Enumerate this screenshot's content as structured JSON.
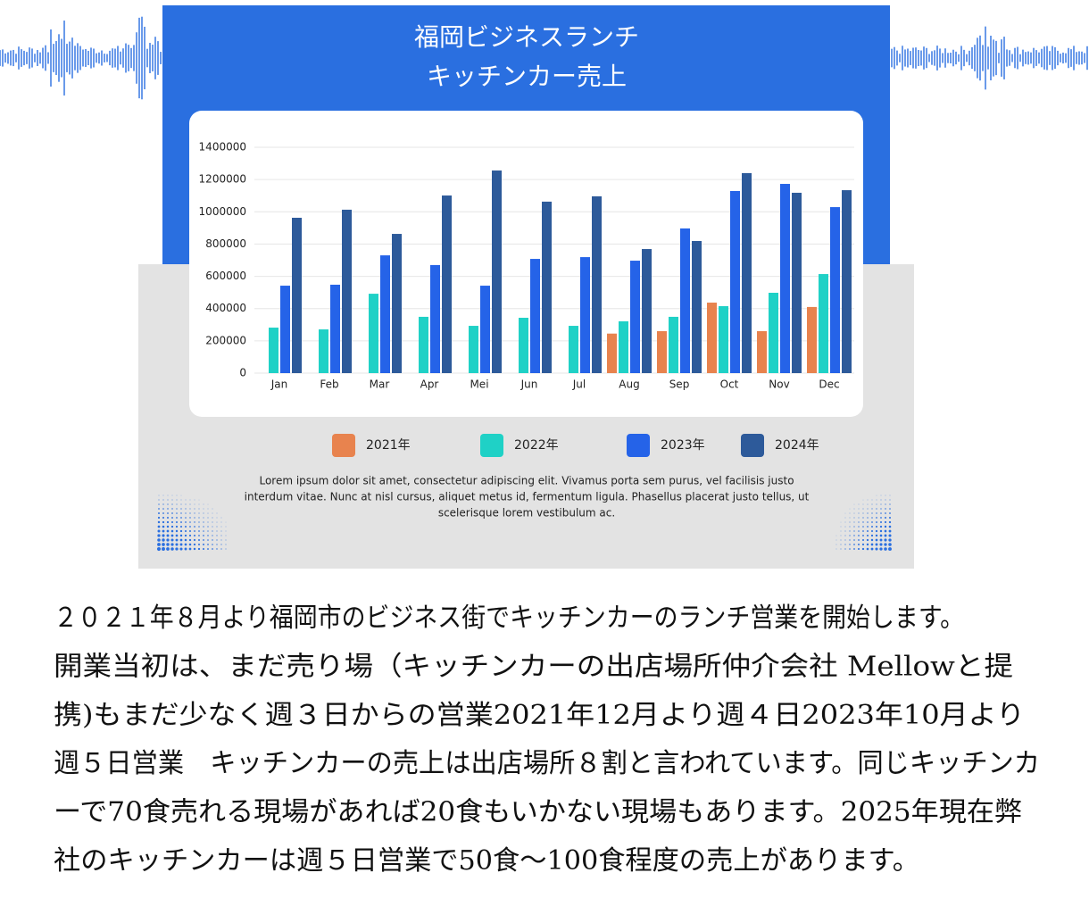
{
  "chart_data": {
    "type": "bar",
    "title": [
      "福岡ビジネスランチ",
      "キッチンカー売上"
    ],
    "categories": [
      "Jan",
      "Feb",
      "Mar",
      "Apr",
      "Mei",
      "Jun",
      "Jul",
      "Aug",
      "Sep",
      "Oct",
      "Nov",
      "Dec"
    ],
    "series": [
      {
        "name": "2021年",
        "color": "#e8834e",
        "values": [
          null,
          null,
          null,
          null,
          null,
          null,
          null,
          245000,
          260000,
          437000,
          260000,
          410000
        ]
      },
      {
        "name": "2022年",
        "color": "#1fd1c6",
        "values": [
          282000,
          271000,
          492000,
          349000,
          293000,
          343000,
          293000,
          321000,
          349000,
          415000,
          498000,
          614000
        ]
      },
      {
        "name": "2023年",
        "color": "#2563e8",
        "values": [
          542000,
          548000,
          730000,
          670000,
          542000,
          708000,
          719000,
          697000,
          897000,
          1129000,
          1173000,
          1029000
        ]
      },
      {
        "name": "2024年",
        "color": "#2d5a9a",
        "values": [
          963000,
          1013000,
          863000,
          1101000,
          1256000,
          1063000,
          1096000,
          769000,
          819000,
          1240000,
          1118000,
          1134000
        ]
      }
    ],
    "ylim": [
      0,
      1400000
    ],
    "yticks": [
      0,
      200000,
      400000,
      600000,
      800000,
      1000000,
      1200000,
      1400000
    ],
    "grid": true,
    "caption": [
      "Lorem ipsum dolor sit amet, consectetur adipiscing elit. Vivamus porta sem purus, vel facilisis justo",
      "interdum vitae. Nunc at nisl cursus, aliquet metus id, fermentum ligula. Phasellus placerat justo tellus, ut",
      "scelerisque lorem vestibulum ac."
    ]
  },
  "article": {
    "lines": [
      "２０２１年８月より福岡市のビジネス街でキッチンカーのランチ営業を開始します。",
      "開業当初は、まだ売り場（キッチンカーの出店場所仲介会社 Mellowと提",
      "携)もまだ少なく週３日からの営業2021年12月より週４日2023年10月より",
      "週５日営業　キッチンカーの売上は出店場所８割と言われています。同じキッチンカ",
      "ーで70食売れる現場があれば20食もいかない現場もあります。2025年現在弊",
      "社のキッチンカーは週５日営業で50食～100食程度の売上があります。"
    ]
  }
}
